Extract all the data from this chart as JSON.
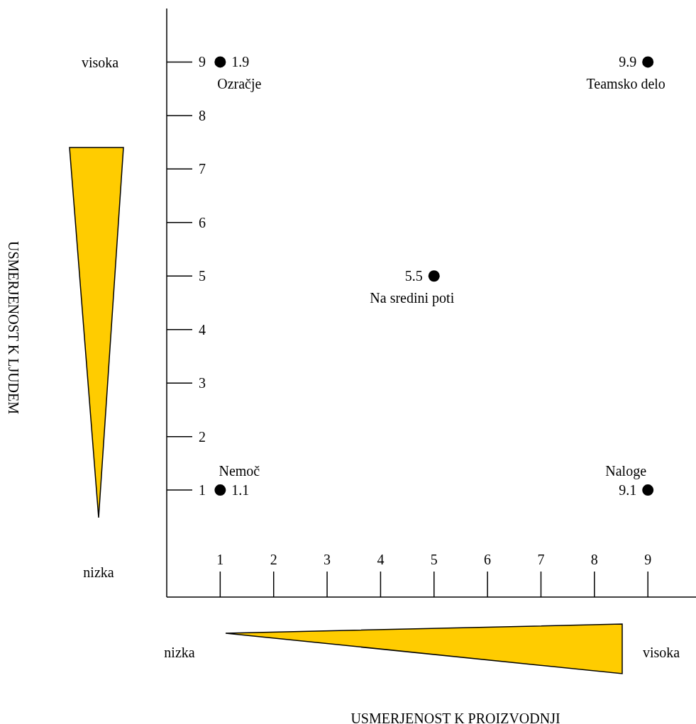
{
  "chart_data": {
    "type": "scatter",
    "x": [
      1,
      9,
      5,
      1,
      9
    ],
    "values": [
      9,
      9,
      5,
      1,
      1
    ],
    "color": "#000000",
    "marker": "circle",
    "grid": false,
    "legend": false,
    "xlim": [
      0,
      9.9
    ],
    "xticks": [
      1,
      2,
      3,
      4,
      5,
      6,
      7,
      8,
      9
    ],
    "ylim": [
      -1,
      10
    ],
    "yticks": [
      1,
      2,
      3,
      4,
      5,
      6,
      7,
      8,
      9
    ],
    "annotations": [
      "visoka",
      "nizka",
      "nizka",
      "visoka",
      "USMERJENOST K LJUDEM",
      "USMERJENOST K PROIZVODNJI",
      {
        "text": "1.9",
        "x": 1,
        "y": 9
      },
      {
        "text": "Ozračje",
        "x": 1,
        "y": 9
      },
      {
        "text": "9.9",
        "x": 9,
        "y": 9
      },
      {
        "text": "Teamsko delo",
        "x": 9,
        "y": 9
      },
      {
        "text": "5.5",
        "x": 5,
        "y": 5
      },
      {
        "text": "Na sredini poti",
        "x": 5,
        "y": 5
      },
      {
        "text": "1.1",
        "x": 1,
        "y": 1
      },
      {
        "text": "Nemoč",
        "x": 1,
        "y": 1
      },
      {
        "text": "9.1",
        "x": 9,
        "y": 1
      },
      {
        "text": "Naloge",
        "x": 9,
        "y": 1
      }
    ]
  }
}
